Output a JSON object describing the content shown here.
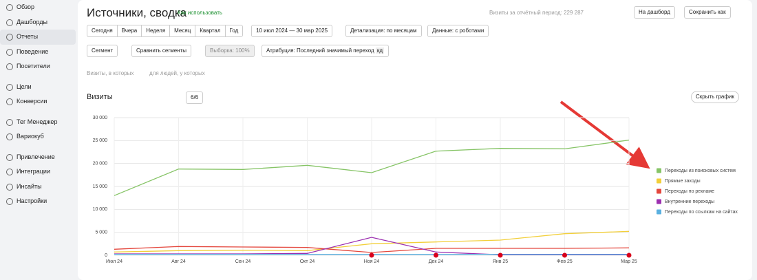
{
  "sidebar": {
    "items": [
      "Обзор",
      "Дашборды",
      "Отчеты",
      "Поведение",
      "Посетители",
      "Цели",
      "Конверсии",
      "Тег Менеджер",
      "Вариокуб",
      "Привлечение",
      "Интеграции",
      "Инсайты",
      "Настройки"
    ]
  },
  "header": {
    "title": "Источники, сводка",
    "help": "Как использовать",
    "total": "Визиты за отчётный период: 229 287",
    "to_dashboard": "На дашборд",
    "save_as": "Сохранить как"
  },
  "periods": [
    "Сегодня",
    "Вчера",
    "Неделя",
    "Месяц",
    "Квартал",
    "Год"
  ],
  "date_range": "10 июл 2024 — 30 мар 2025",
  "detail": "Детализация: по месяцам",
  "robots": "Данные: с роботами",
  "segment": "Сегмент",
  "compare": "Сравнить сегменты",
  "sample": "Выборка: 100%",
  "attribution": "Атрибуция: Последний значимый переход",
  "attribution_tag": "кд",
  "filter_visits": "Визиты, в которых",
  "filter_people": "для людей, у которых",
  "chart_header": {
    "title": "Визиты",
    "series_count": "6/6",
    "hide": "Скрыть график"
  },
  "chart_data": {
    "type": "line",
    "legend": "right",
    "grid": true,
    "categories": [
      "Июл 24",
      "Авг 24",
      "Сен 24",
      "Окт 24",
      "Ноя 24",
      "Дек 24",
      "Янв 25",
      "Фев 25",
      "Мар 25"
    ],
    "ylim": [
      0,
      30000
    ],
    "yticks": [
      0,
      {
        "value": 5000,
        "label": "5 000"
      },
      {
        "value": 10000,
        "label": "10 000"
      },
      {
        "value": 15000,
        "label": "15 000"
      },
      {
        "value": 20000,
        "label": "20 000"
      },
      {
        "value": 25000,
        "label": "25 000"
      },
      {
        "value": 30000,
        "label": "30 000"
      }
    ],
    "series": [
      {
        "name": "Переходы из поисковых систем",
        "color": "#86c466",
        "values": [
          13000,
          18800,
          18700,
          19600,
          18000,
          22700,
          23300,
          23200,
          25100
        ]
      },
      {
        "name": "Прямые заходы",
        "color": "#f2cf3a",
        "values": [
          700,
          1000,
          1100,
          1000,
          2500,
          2900,
          3300,
          4700,
          5200
        ]
      },
      {
        "name": "Переходы по рекламе",
        "color": "#e4473d",
        "values": [
          1300,
          1900,
          1800,
          1700,
          600,
          1500,
          1500,
          1500,
          1600
        ]
      },
      {
        "name": "Внутренние переходы",
        "color": "#9c2fb0",
        "values": [
          300,
          300,
          300,
          400,
          3900,
          700,
          100,
          100,
          100
        ]
      },
      {
        "name": "Переходы по ссылкам на сайтах",
        "color": "#5ab0e0",
        "values": [
          200,
          200,
          200,
          200,
          200,
          200,
          200,
          200,
          200
        ]
      }
    ]
  }
}
